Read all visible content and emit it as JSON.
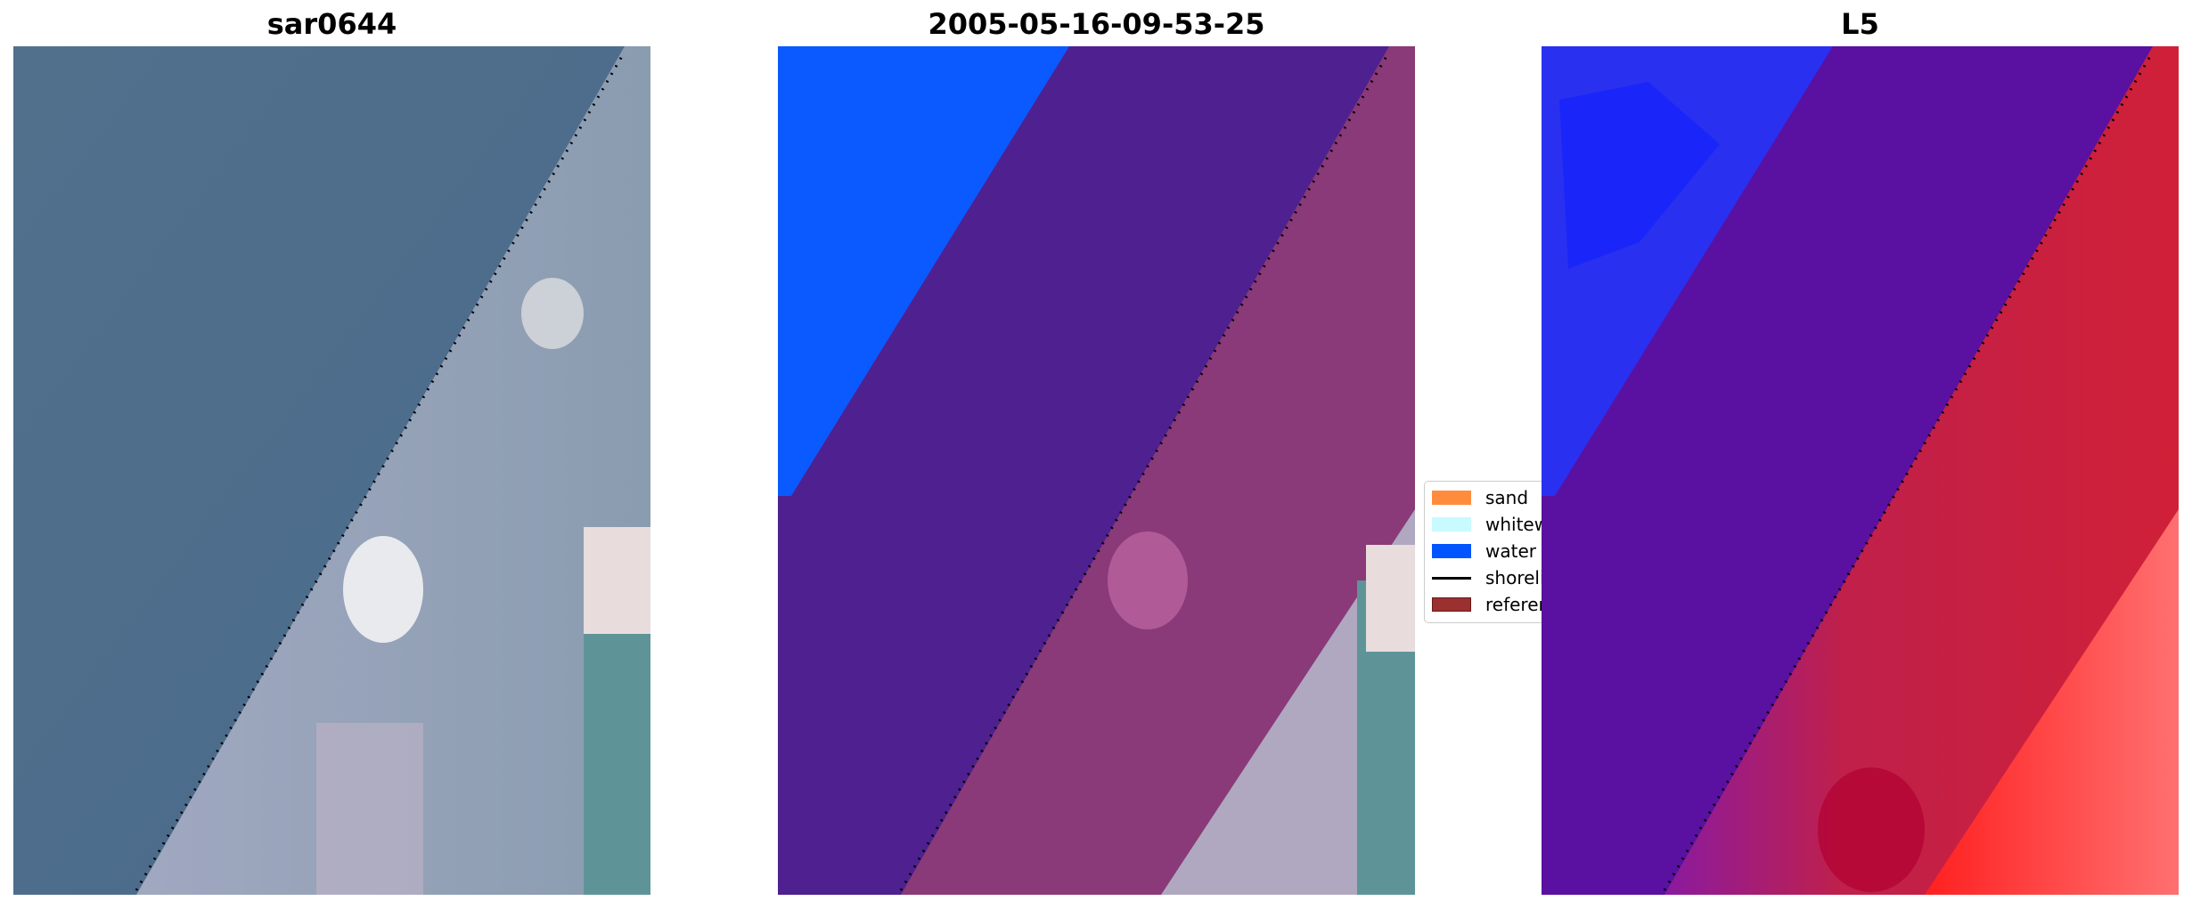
{
  "panels": [
    {
      "title": "sar0644"
    },
    {
      "title": "2005-05-16-09-53-25"
    },
    {
      "title": "L5"
    }
  ],
  "legend": {
    "placement": "center-left of third panel",
    "items": [
      {
        "label": "sand",
        "color": "#ff8c3c",
        "kind": "patch"
      },
      {
        "label": "whitewater",
        "color": "#c8faff",
        "kind": "patch"
      },
      {
        "label": "water",
        "color": "#0055ff",
        "kind": "patch"
      },
      {
        "label": "shoreline",
        "color": "#000000",
        "kind": "line"
      },
      {
        "label": "reference",
        "color": "#8b2a2a",
        "kind": "patch"
      }
    ]
  },
  "colors": {
    "water_class": "#0a5aff",
    "sand_overlay": "#4f2090",
    "land_overlay": "#8a3a78",
    "l5_water": "#2030e0",
    "l5_land": "#d0203a"
  }
}
